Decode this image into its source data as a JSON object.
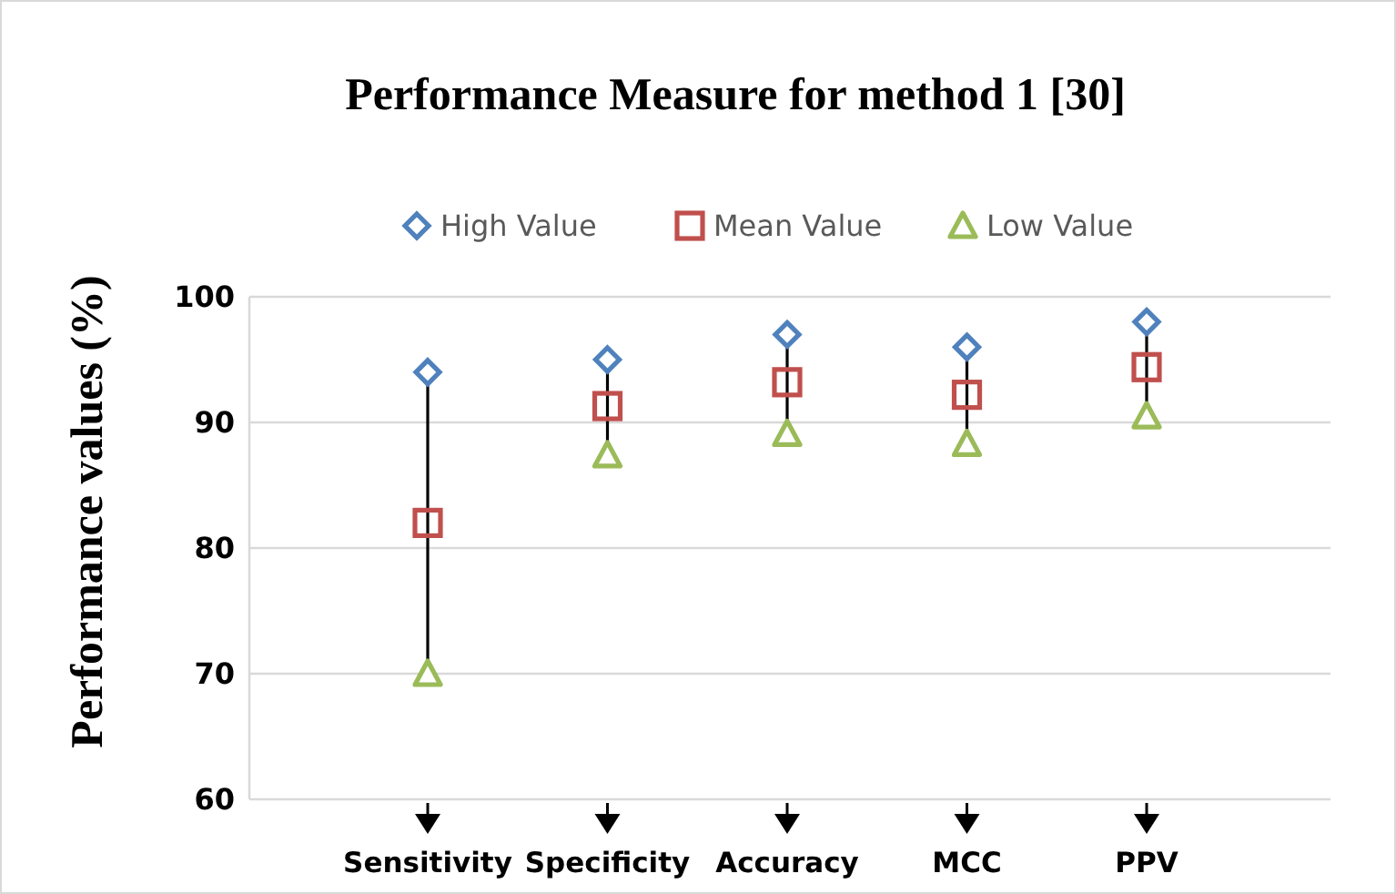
{
  "chart_data": {
    "type": "scatter",
    "title": "Performance Measure for method 1 [30]",
    "ylabel": "Performance values (%)",
    "categories": [
      "Sensitivity",
      "Specificity",
      "Accuracy",
      "MCC",
      "PPV"
    ],
    "series": [
      {
        "name": "High Value",
        "color": "#4f81bd",
        "marker": "diamond",
        "values": [
          94,
          95,
          97,
          96,
          98
        ]
      },
      {
        "name": "Mean Value",
        "color": "#c0504d",
        "marker": "square",
        "values": [
          82,
          91.3,
          93.2,
          92.2,
          94.4
        ]
      },
      {
        "name": "Low Value",
        "color": "#9bbb59",
        "marker": "triangle",
        "values": [
          70,
          87.4,
          89.1,
          88.3,
          90.5
        ]
      }
    ],
    "ylim": [
      60,
      100
    ],
    "yticks": [
      60,
      70,
      80,
      90,
      100
    ],
    "grid": "y",
    "legend": "top"
  }
}
